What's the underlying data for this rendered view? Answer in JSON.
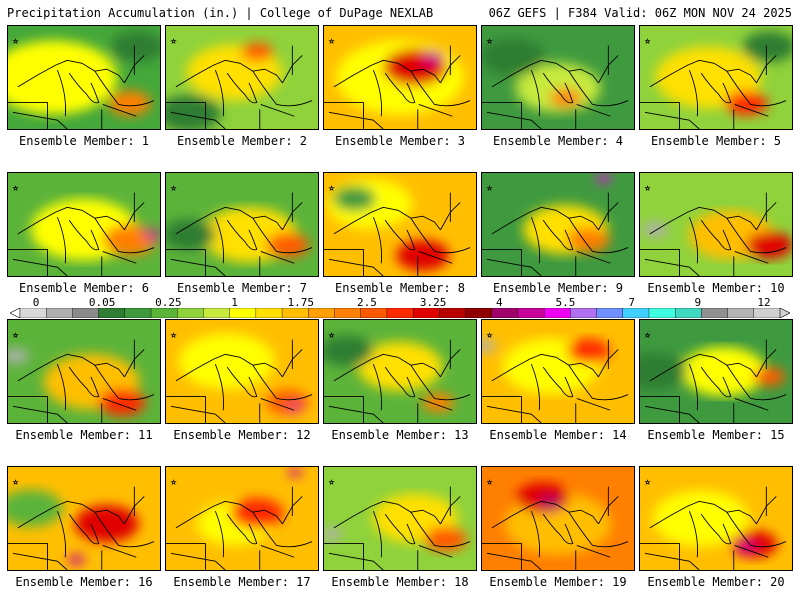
{
  "header": {
    "title": "Precipitation Accumulation (in.) | College of DuPage NEXLAB",
    "run_info": "06Z GEFS | F384 Valid: 06Z MON NOV 24 2025"
  },
  "colorbar": {
    "labels": [
      "0",
      "0.05",
      "0.25",
      "1",
      "1.75",
      "2.5",
      "3.25",
      "4",
      "5.5",
      "7",
      "9",
      "12"
    ],
    "colors": [
      "#d9d9d9",
      "#b0b0b0",
      "#8a8a8a",
      "#2e7d32",
      "#3f9a3f",
      "#5cb33a",
      "#8fd23b",
      "#c8ea3e",
      "#ffff00",
      "#ffe000",
      "#ffbf00",
      "#ff9f00",
      "#ff7f00",
      "#ff5a00",
      "#ff2a00",
      "#e00000",
      "#b80000",
      "#900000",
      "#a0006a",
      "#c8009a",
      "#f000f0",
      "#b070f0",
      "#7090ff",
      "#40d0ff",
      "#40ffe0",
      "#40d8c0",
      "#909090",
      "#b4b4b4",
      "#d0d0d0"
    ]
  },
  "members": [
    {
      "label": "Ensemble Member: 1",
      "base": "#44a83a",
      "blobs": [
        [
          "#ffff00",
          0.3,
          0.5,
          0.6
        ],
        [
          "#ff8000",
          0.8,
          0.75,
          0.2
        ],
        [
          "#2e7d32",
          0.85,
          0.2,
          0.25
        ]
      ]
    },
    {
      "label": "Ensemble Member: 2",
      "base": "#8fd23b",
      "blobs": [
        [
          "#ffe000",
          0.45,
          0.45,
          0.45
        ],
        [
          "#ff5a00",
          0.6,
          0.25,
          0.15
        ],
        [
          "#2e7d32",
          0.15,
          0.85,
          0.3
        ]
      ]
    },
    {
      "label": "Ensemble Member: 3",
      "base": "#ffbf00",
      "blobs": [
        [
          "#ffff00",
          0.5,
          0.5,
          0.6
        ],
        [
          "#e00000",
          0.6,
          0.4,
          0.3
        ],
        [
          "#c8009a",
          0.72,
          0.3,
          0.1
        ]
      ]
    },
    {
      "label": "Ensemble Member: 4",
      "base": "#3f9a3f",
      "blobs": [
        [
          "#c8ea3e",
          0.5,
          0.6,
          0.4
        ],
        [
          "#ff8000",
          0.55,
          0.7,
          0.15
        ],
        [
          "#2e7d32",
          0.2,
          0.3,
          0.3
        ]
      ]
    },
    {
      "label": "Ensemble Member: 5",
      "base": "#8fd23b",
      "blobs": [
        [
          "#ffe000",
          0.45,
          0.5,
          0.5
        ],
        [
          "#ff2a00",
          0.7,
          0.75,
          0.2
        ],
        [
          "#2e7d32",
          0.85,
          0.2,
          0.25
        ]
      ]
    },
    {
      "label": "Ensemble Member: 6",
      "base": "#5cb33a",
      "blobs": [
        [
          "#ffff00",
          0.5,
          0.55,
          0.5
        ],
        [
          "#ff7f00",
          0.8,
          0.65,
          0.25
        ],
        [
          "#c8009a",
          0.95,
          0.6,
          0.08
        ]
      ]
    },
    {
      "label": "Ensemble Member: 7",
      "base": "#5cb33a",
      "blobs": [
        [
          "#ffe000",
          0.55,
          0.6,
          0.45
        ],
        [
          "#ff5a00",
          0.8,
          0.7,
          0.2
        ],
        [
          "#2e7d32",
          0.15,
          0.6,
          0.25
        ]
      ]
    },
    {
      "label": "Ensemble Member: 8",
      "base": "#ffbf00",
      "blobs": [
        [
          "#ffff00",
          0.3,
          0.3,
          0.4
        ],
        [
          "#e00000",
          0.65,
          0.8,
          0.25
        ],
        [
          "#3f9a3f",
          0.2,
          0.25,
          0.2
        ]
      ]
    },
    {
      "label": "Ensemble Member: 9",
      "base": "#3f9a3f",
      "blobs": [
        [
          "#ffe000",
          0.55,
          0.55,
          0.4
        ],
        [
          "#ff7f00",
          0.7,
          0.65,
          0.2
        ],
        [
          "#f000f0",
          0.8,
          0.05,
          0.07
        ]
      ]
    },
    {
      "label": "Ensemble Member: 10",
      "base": "#8fd23b",
      "blobs": [
        [
          "#ffbf00",
          0.6,
          0.6,
          0.4
        ],
        [
          "#e00000",
          0.85,
          0.7,
          0.22
        ],
        [
          "#b0b0b0",
          0.1,
          0.55,
          0.12
        ]
      ]
    },
    {
      "label": "Ensemble Member: 11",
      "base": "#5cb33a",
      "blobs": [
        [
          "#ffbf00",
          0.55,
          0.6,
          0.45
        ],
        [
          "#ff2a00",
          0.75,
          0.8,
          0.22
        ],
        [
          "#b0b0b0",
          0.05,
          0.35,
          0.12
        ]
      ]
    },
    {
      "label": "Ensemble Member: 12",
      "base": "#ffbf00",
      "blobs": [
        [
          "#ffff00",
          0.4,
          0.4,
          0.45
        ],
        [
          "#ff5a00",
          0.8,
          0.8,
          0.2
        ],
        [
          "#c8009a",
          0.85,
          0.85,
          0.06
        ]
      ]
    },
    {
      "label": "Ensemble Member: 13",
      "base": "#5cb33a",
      "blobs": [
        [
          "#ffe000",
          0.5,
          0.45,
          0.4
        ],
        [
          "#ff7f00",
          0.75,
          0.8,
          0.15
        ],
        [
          "#2e7d32",
          0.15,
          0.3,
          0.25
        ]
      ]
    },
    {
      "label": "Ensemble Member: 14",
      "base": "#ffbf00",
      "blobs": [
        [
          "#ffff00",
          0.45,
          0.45,
          0.45
        ],
        [
          "#ff2a00",
          0.7,
          0.3,
          0.2
        ],
        [
          "#b0b0b0",
          0.02,
          0.25,
          0.1
        ]
      ]
    },
    {
      "label": "Ensemble Member: 15",
      "base": "#3f9a3f",
      "blobs": [
        [
          "#ffff00",
          0.55,
          0.5,
          0.4
        ],
        [
          "#ff5a00",
          0.85,
          0.55,
          0.15
        ],
        [
          "#2e7d32",
          0.1,
          0.5,
          0.3
        ]
      ]
    },
    {
      "label": "Ensemble Member: 16",
      "base": "#ffbf00",
      "blobs": [
        [
          "#5cb33a",
          0.15,
          0.4,
          0.3
        ],
        [
          "#e00000",
          0.65,
          0.55,
          0.3
        ],
        [
          "#c8009a",
          0.45,
          0.9,
          0.08
        ]
      ]
    },
    {
      "label": "Ensemble Member: 17",
      "base": "#ffbf00",
      "blobs": [
        [
          "#ffff00",
          0.45,
          0.55,
          0.35
        ],
        [
          "#ff2a00",
          0.6,
          0.45,
          0.25
        ],
        [
          "#c8009a",
          0.85,
          0.05,
          0.07
        ]
      ]
    },
    {
      "label": "Ensemble Member: 18",
      "base": "#8fd23b",
      "blobs": [
        [
          "#ffe000",
          0.6,
          0.5,
          0.4
        ],
        [
          "#ff5a00",
          0.8,
          0.7,
          0.2
        ],
        [
          "#b0b0b0",
          0.05,
          0.65,
          0.1
        ]
      ]
    },
    {
      "label": "Ensemble Member: 19",
      "base": "#ff7f00",
      "blobs": [
        [
          "#ffbf00",
          0.5,
          0.55,
          0.5
        ],
        [
          "#e00000",
          0.4,
          0.3,
          0.25
        ],
        [
          "#a0006a",
          0.45,
          0.35,
          0.1
        ]
      ]
    },
    {
      "label": "Ensemble Member: 20",
      "base": "#ffbf00",
      "blobs": [
        [
          "#ffff00",
          0.4,
          0.5,
          0.45
        ],
        [
          "#e00000",
          0.75,
          0.75,
          0.22
        ],
        [
          "#c8009a",
          0.7,
          0.78,
          0.08
        ]
      ]
    }
  ]
}
